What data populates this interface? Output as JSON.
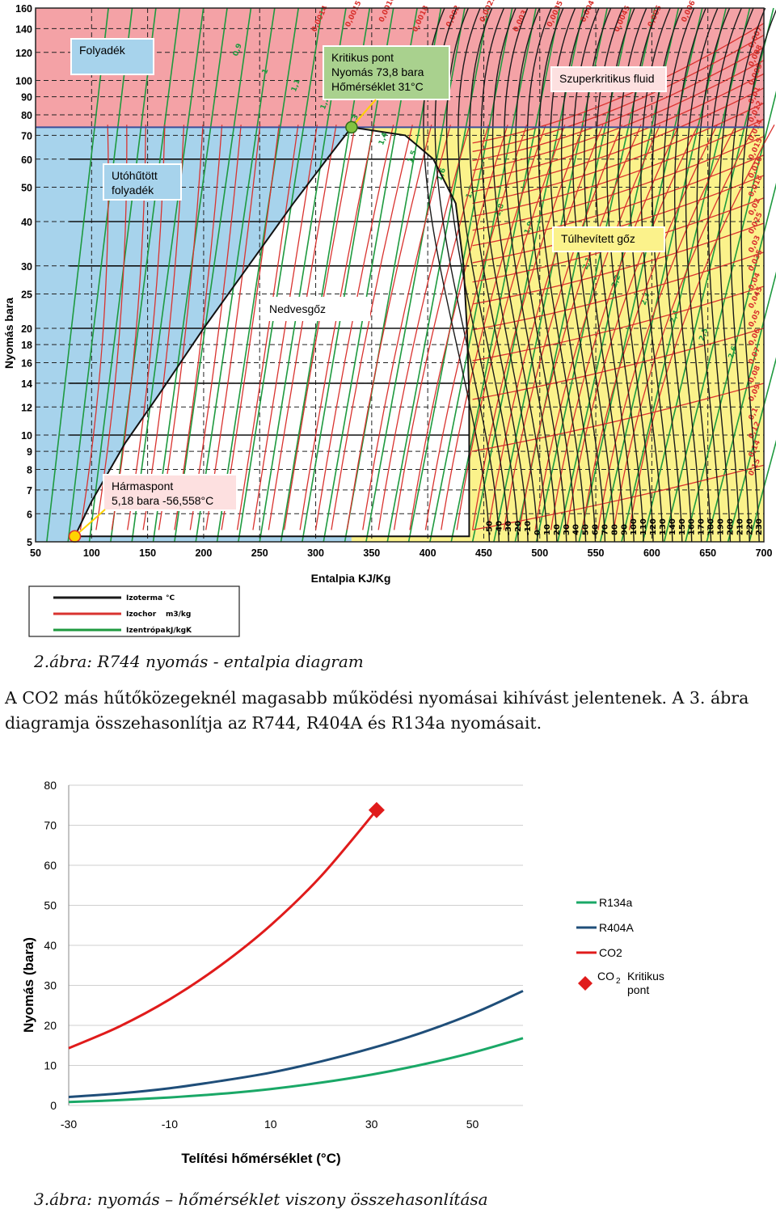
{
  "figure2": {
    "chart_data": {
      "type": "line",
      "title": "",
      "xlabel": "Entalpia KJ/Kg",
      "ylabel": "Nyomás bara",
      "x_scale": "linear",
      "y_scale": "log",
      "xlim": [
        50,
        700
      ],
      "ylim": [
        5,
        160
      ],
      "x_ticks": [
        "50",
        "100",
        "150",
        "200",
        "250",
        "300",
        "350",
        "400",
        "450",
        "500",
        "550",
        "600",
        "650",
        "700"
      ],
      "y_ticks": [
        "160",
        "140",
        "120",
        "100",
        "90",
        "80",
        "70",
        "60",
        "50",
        "40",
        "30",
        "25",
        "20",
        "18",
        "16",
        "14",
        "12",
        "10",
        "9",
        "8",
        "7",
        "6",
        "5"
      ],
      "grid": true,
      "region_labels": {
        "liquid": "Folyadék",
        "subcooled": "Utóhűtött folyadék",
        "supercritical": "Szuperkritikus fluid",
        "superheated": "Túlhevített gőz",
        "wet_vapor": "Nedvesgőz"
      },
      "critical_point": {
        "label_lines": [
          "Kritikus pont",
          "Nyomás 73,8 bara",
          "Hőmérséklet 31°C"
        ],
        "h": 332,
        "p": 73.8
      },
      "triple_point": {
        "label_lines": [
          "Hármaspont",
          "5,18 bara -56,558°C"
        ],
        "h": 85,
        "p": 5.18
      },
      "saturation_liquid": {
        "h": [
          85,
          100,
          130,
          160,
          200,
          240,
          280,
          310,
          332
        ],
        "p": [
          5.18,
          6.5,
          9.5,
          13,
          20,
          30,
          45,
          60,
          73.8
        ]
      },
      "saturation_vapor": {
        "h": [
          332,
          380,
          405,
          425,
          432,
          435,
          437,
          437,
          437
        ],
        "p": [
          73.8,
          70,
          60,
          45,
          30,
          20,
          13,
          8,
          5.18
        ]
      },
      "isotherm_labels": [
        "-50",
        "-40",
        "-30",
        "-20",
        "-10",
        "0",
        "10",
        "20",
        "30",
        "40",
        "50",
        "60",
        "70",
        "80",
        "90",
        "100",
        "110",
        "120",
        "130",
        "140",
        "150",
        "160",
        "170",
        "180",
        "190",
        "200",
        "210",
        "220",
        "230"
      ],
      "isochor_labels": [
        "0,0014",
        "0,0015",
        "0,0016",
        "0,0018",
        "0,002",
        "0,0025",
        "0,003",
        "0,0035",
        "0,004",
        "0,0045",
        "0,005",
        "0,006",
        "0,007",
        "0,008",
        "0,009",
        "0,01",
        "0,012",
        "0,014",
        "0,015",
        "0,016",
        "0,018",
        "0,02",
        "0,025",
        "0,03",
        "0,035",
        "0,04",
        "0,045",
        "0,05",
        "0,06",
        "0,07",
        "0,08",
        "0,09",
        "0,1",
        "0,12",
        "0,14",
        "0,15"
      ],
      "isentrope_labels": [
        "0,9",
        "1",
        "1,1",
        "1,2",
        "1,3",
        "1,4",
        "1,5",
        "1,6",
        "1,7",
        "1,8",
        "1,9",
        "2",
        "2,1",
        "2,2",
        "2,3",
        "2,4",
        "2,5",
        "2,6"
      ],
      "legend": [
        {
          "name": "Izoterma",
          "unit": "°C",
          "color": "#1a1a1a"
        },
        {
          "name": "Izochor",
          "unit": "m3/kg",
          "color": "#d9332f"
        },
        {
          "name": "Izentrópa",
          "unit": "kJ/kgK",
          "color": "#1e9a3f"
        }
      ],
      "colors": {
        "liquid": "#f4a2a6",
        "subcooled": "#a7d3ec",
        "supercritical": "#f4a2a6",
        "superheated": "#fbf28b",
        "isotherm": "#1a1a1a",
        "isochor": "#d9332f",
        "isentrope": "#1e9a3f",
        "critical_box": "#a9d18e"
      }
    }
  },
  "caption2": "2.ábra: R744 nyomás - entalpia diagram",
  "paragraph": "A CO2 más hűtőközegeknél magasabb működési nyomásai kihívást jelentenek. A 3. ábra diagramja összehasonlítja az R744, R404A és R134a nyomásait.",
  "figure3": {
    "chart_data": {
      "type": "line",
      "title": "",
      "xlabel": "Telítési hőmérséklet (°C)",
      "ylabel": "Nyomás (bara)",
      "xlim": [
        -30,
        60
      ],
      "ylim": [
        0,
        80
      ],
      "x_ticks": [
        "-30",
        "-10",
        "10",
        "30",
        "50"
      ],
      "y_ticks": [
        "80",
        "70",
        "60",
        "50",
        "40",
        "30",
        "20",
        "10",
        "0"
      ],
      "grid": "horizontal",
      "x": [
        -30,
        -20,
        -10,
        0,
        10,
        20,
        30,
        40,
        50,
        60
      ],
      "series": [
        {
          "name": "R134a",
          "color": "#1aa867",
          "values": [
            0.85,
            1.33,
            2.0,
            2.9,
            4.1,
            5.7,
            7.7,
            10.2,
            13.2,
            16.8
          ]
        },
        {
          "name": "R404A",
          "color": "#1f4e79",
          "values": [
            2.1,
            3.0,
            4.3,
            6.1,
            8.2,
            11.0,
            14.3,
            18.2,
            22.9,
            28.6
          ]
        },
        {
          "name": "CO2",
          "color": "#e01b1b",
          "x": [
            -30,
            -20,
            -10,
            0,
            10,
            20,
            31
          ],
          "values": [
            14.3,
            19.7,
            26.5,
            34.9,
            45.0,
            57.3,
            73.8
          ]
        }
      ],
      "marker": {
        "name": "CO2 Kritikus pont",
        "label_main": "CO",
        "label_sub": "2",
        "label_extra_1": "Kritikus",
        "label_extra_2": "pont",
        "x": 31,
        "y": 73.8,
        "color": "#e01b1b",
        "shape": "diamond"
      },
      "legend_placement": "right"
    }
  },
  "caption3": "3.ábra: nyomás – hőmérséklet viszony összehasonlítása"
}
